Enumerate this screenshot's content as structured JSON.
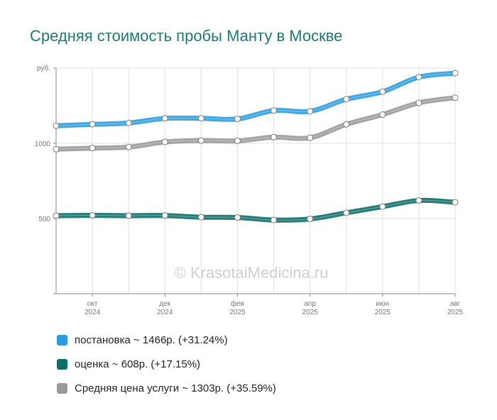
{
  "chart_data": {
    "type": "line",
    "title": "Средняя стоимость пробы Манту в Москве",
    "y_unit_label": "руб.",
    "ylim": [
      0,
      1500
    ],
    "y_ticks": [
      {
        "value": 1000,
        "label": "1000"
      },
      {
        "value": 500,
        "label": "500"
      }
    ],
    "x_index_range": [
      0,
      11
    ],
    "x_tick_labels": [
      {
        "index": 1,
        "month": "окт",
        "year": "2024"
      },
      {
        "index": 3,
        "month": "дек",
        "year": "2024"
      },
      {
        "index": 5,
        "month": "фев",
        "year": "2025"
      },
      {
        "index": 7,
        "month": "апр",
        "year": "2025"
      },
      {
        "index": 9,
        "month": "июн",
        "year": "2025"
      },
      {
        "index": 11,
        "month": "авг",
        "year": "2025"
      }
    ],
    "series": [
      {
        "key": "postanovka",
        "color": "#2b9ddf",
        "values": [
          1117,
          1126,
          1135,
          1166,
          1166,
          1162,
          1218,
          1213,
          1293,
          1343,
          1440,
          1466
        ],
        "legend": "постановка ~ 1466р. (+31.24%)"
      },
      {
        "key": "avg",
        "color": "#9a9a9a",
        "values": [
          961,
          968,
          975,
          1009,
          1019,
          1016,
          1041,
          1037,
          1126,
          1191,
          1269,
          1303
        ],
        "legend": "Средняя цена услуги ~ 1303р. (+35.59%)"
      },
      {
        "key": "ocenka",
        "color": "#0e6e68",
        "values": [
          519,
          521,
          519,
          520,
          509,
          507,
          490,
          497,
          538,
          579,
          620,
          608
        ],
        "legend": "оценка ~ 608р. (+17.15%)"
      }
    ],
    "watermark": "© KrasotaiMedicina.ru"
  },
  "legend_order": [
    0,
    2,
    1
  ]
}
